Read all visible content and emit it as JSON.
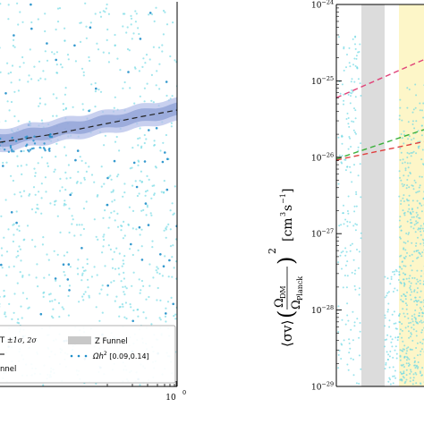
{
  "chart_data": [
    {
      "type": "scatter",
      "title": "",
      "xlabel": "",
      "ylabel": "",
      "x_scale": "log",
      "x_tick_labels": [
        {
          "base": "10",
          "exp": "0"
        }
      ],
      "grid": false,
      "legend_placement": "bottom",
      "legend": [
        {
          "label_main": "T ",
          "label_math": "±1σ, 2σ",
          "kind": "band"
        },
        {
          "label_main": "Z Funnel",
          "kind": "gray-band"
        },
        {
          "label_main": "nnel",
          "kind": "band-partial"
        },
        {
          "label_main": "Ωh",
          "label_sup": "2",
          "label_math": " [0.09,0.14]",
          "kind": "dots"
        }
      ],
      "series": [
        {
          "kind": "relic-points",
          "color": "#6fd8e4"
        },
        {
          "kind": "sigma-band",
          "color": "#8fa0d8"
        },
        {
          "kind": "central-line",
          "color": "#222222",
          "x": [
            0.05,
            1.0
          ],
          "y_frac": [
            0.63,
            0.7
          ]
        }
      ],
      "colors": {
        "points": "#6fd8e4",
        "points_dark": "#1e8ec9",
        "band_outer": "#b6c0ea",
        "band_inner": "#8ea0d6",
        "gray": "#c8c8c8"
      }
    },
    {
      "type": "scatter",
      "title": "",
      "ylabel": {
        "prefix": "⟨σv⟩",
        "frac_num": "Ω",
        "frac_num_sub": "DM",
        "frac_den": "Ω",
        "frac_den_sub": "Planck",
        "power": "2",
        "units": "[cm",
        "units_sup": "3",
        "units_rest": "s",
        "units_sup2": "−1",
        "units_end": "]"
      },
      "y_scale": "log",
      "ylim": [
        1e-29,
        1e-24
      ],
      "y_tick_labels": [
        {
          "value": 1e-24,
          "base": "10",
          "exp": "−24"
        },
        {
          "value": 1e-25,
          "base": "10",
          "exp": "−25"
        },
        {
          "value": 1e-26,
          "base": "10",
          "exp": "−26"
        },
        {
          "value": 1e-27,
          "base": "10",
          "exp": "−27"
        },
        {
          "value": 1e-28,
          "base": "10",
          "exp": "−28"
        },
        {
          "value": 1e-29,
          "base": "10",
          "exp": "−29"
        }
      ],
      "bands": [
        {
          "kind": "Z funnel",
          "color": "#dcdcdc"
        },
        {
          "kind": "yellow band",
          "color": "#fdf6c8"
        }
      ],
      "limit_lines": [
        {
          "color": "#e0457a",
          "style": "dashed",
          "y_start": 6e-26,
          "y_end": 1.9e-25
        },
        {
          "color": "#3ab03a",
          "style": "dashed",
          "y_start": 9.5e-27,
          "y_end": 2.3e-26
        },
        {
          "color": "#e04040",
          "style": "dashed",
          "y_start": 9.2e-27,
          "y_end": 1.6e-26
        }
      ],
      "colors": {
        "points": "#6fd8e4"
      }
    }
  ]
}
